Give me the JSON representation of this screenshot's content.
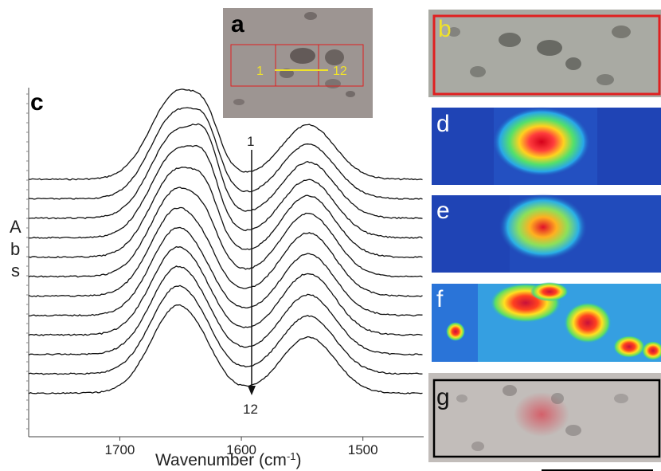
{
  "chart_data": {
    "type": "line",
    "xlabel_main": "Wavenumber (cm",
    "xlabel_sup": "-1",
    "xlabel_close": ")",
    "ylabel_letters": [
      "A",
      "b",
      "s"
    ],
    "xlim": [
      1775,
      1450
    ],
    "x_ticks": [
      1700,
      1600,
      1500
    ],
    "arrow_start_label": "1",
    "arrow_end_label": "12",
    "series_count": 12,
    "peaks": [
      {
        "center": 1652,
        "width": 22
      },
      {
        "center": 1628,
        "width": 10
      },
      {
        "center": 1545,
        "width": 22
      }
    ],
    "series": [
      {
        "baseline": 1.0,
        "amp1": 1.0,
        "amp2": 0.3,
        "amp3": 0.62
      },
      {
        "baseline": 0.92,
        "amp1": 1.0,
        "amp2": 0.35,
        "amp3": 0.62
      },
      {
        "baseline": 0.84,
        "amp1": 1.0,
        "amp2": 0.42,
        "amp3": 0.64
      },
      {
        "baseline": 0.76,
        "amp1": 1.0,
        "amp2": 0.38,
        "amp3": 0.66
      },
      {
        "baseline": 0.68,
        "amp1": 1.0,
        "amp2": 0.3,
        "amp3": 0.7
      },
      {
        "baseline": 0.6,
        "amp1": 1.0,
        "amp2": 0.2,
        "amp3": 0.72
      },
      {
        "baseline": 0.52,
        "amp1": 1.0,
        "amp2": 0.1,
        "amp3": 0.72
      },
      {
        "baseline": 0.44,
        "amp1": 1.0,
        "amp2": 0.05,
        "amp3": 0.7
      },
      {
        "baseline": 0.36,
        "amp1": 1.0,
        "amp2": 0.05,
        "amp3": 0.7
      },
      {
        "baseline": 0.28,
        "amp1": 1.0,
        "amp2": 0.05,
        "amp3": 0.68
      },
      {
        "baseline": 0.2,
        "amp1": 1.0,
        "amp2": 0.05,
        "amp3": 0.66
      },
      {
        "baseline": 0.12,
        "amp1": 1.0,
        "amp2": 0.05,
        "amp3": 0.64
      }
    ]
  },
  "panels": {
    "a": {
      "letter": "a",
      "line_start": "1",
      "line_end": "12"
    },
    "b": {
      "letter": "b"
    },
    "c": {
      "letter": "c"
    },
    "d": {
      "letter": "d"
    },
    "e": {
      "letter": "e"
    },
    "f": {
      "letter": "f"
    },
    "g": {
      "letter": "g"
    }
  },
  "colors": {
    "trace": "#111111",
    "yellow": "#f0e22a",
    "red_box": "#e02020",
    "map_background": "#1f44b5"
  }
}
